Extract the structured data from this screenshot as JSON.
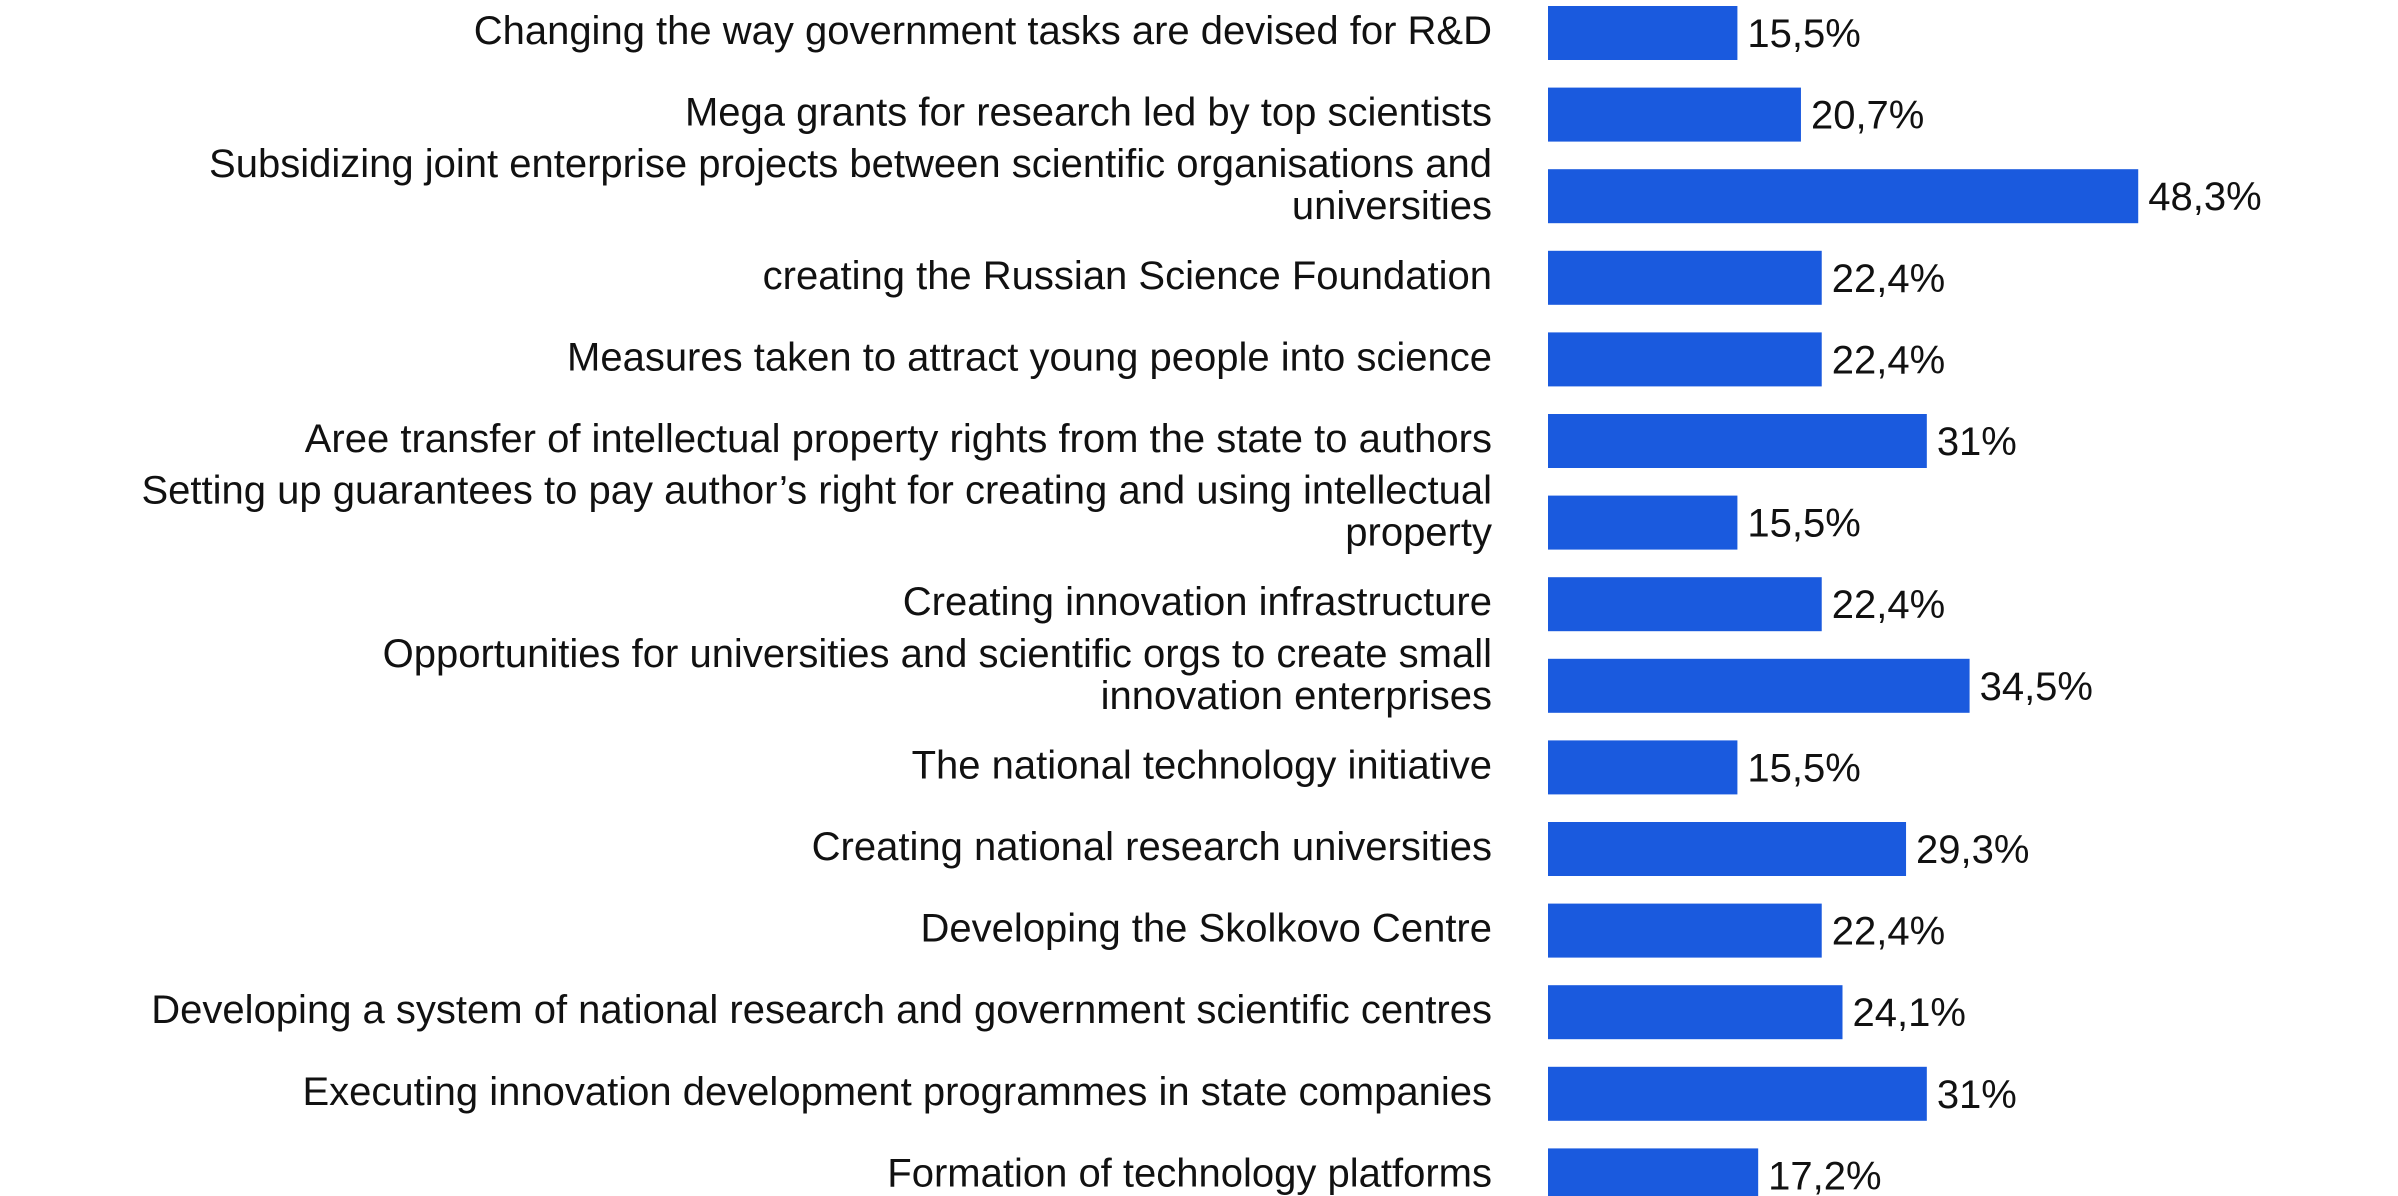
{
  "colors": {
    "bar": "#1a5ade",
    "text": "#111111",
    "background": "#ffffff"
  },
  "chart_data": {
    "type": "bar",
    "orientation": "horizontal",
    "title": "",
    "xlabel": "",
    "ylabel": "",
    "grid": false,
    "legend": "none",
    "xlim": [
      0,
      60
    ],
    "categories": [
      "Changing the way government tasks are devised for R&D",
      "Mega grants for research led by top scientists",
      "Subsidizing joint enterprise projects between scientific organisations and universities",
      "creating the Russian Science Foundation",
      "Measures taken to attract young people into science",
      "Aree transfer of intellectual property rights from the state to authors",
      "Setting up guarantees to pay author’s right for creating and using intellectual property",
      "Creating innovation infrastructure",
      "Opportunities for universities and scientific orgs to create small innovation enterprises",
      "The national technology initiative",
      "Creating national research universities",
      "Developing the Skolkovo Centre",
      "Developing a system of national research and government scientific centres",
      "Executing innovation development programmes in state companies",
      "Formation of technology platforms"
    ],
    "category_lines": [
      [
        "Changing the way government tasks are devised for R&D"
      ],
      [
        "Mega grants for research led by top scientists"
      ],
      [
        "Subsidizing joint enterprise projects between scientific organisations and",
        "universities"
      ],
      [
        "creating the Russian Science Foundation"
      ],
      [
        "Measures taken to attract young people into science"
      ],
      [
        "Aree transfer of intellectual property rights from the state to authors"
      ],
      [
        "Setting up guarantees to pay author’s right for creating and using intellectual",
        "property"
      ],
      [
        "Creating innovation infrastructure"
      ],
      [
        "Opportunities for universities and scientific orgs to create small",
        "innovation enterprises"
      ],
      [
        "The national technology initiative"
      ],
      [
        "Creating national research universities"
      ],
      [
        "Developing the Skolkovo Centre"
      ],
      [
        "Developing a system of national research and government scientific centres"
      ],
      [
        "Executing innovation development programmes in state companies"
      ],
      [
        "Formation of technology platforms"
      ]
    ],
    "values": [
      15.5,
      20.7,
      48.3,
      22.4,
      22.4,
      31,
      15.5,
      22.4,
      34.5,
      15.5,
      29.3,
      22.4,
      24.1,
      31,
      17.2
    ],
    "value_labels": [
      "15,5%",
      "20,7%",
      "48,3%",
      "22,4%",
      "22,4%",
      "31%",
      "15,5%",
      "22,4%",
      "34,5%",
      "15,5%",
      "29,3%",
      "22,4%",
      "24,1%",
      "31%",
      "17,2%"
    ]
  }
}
